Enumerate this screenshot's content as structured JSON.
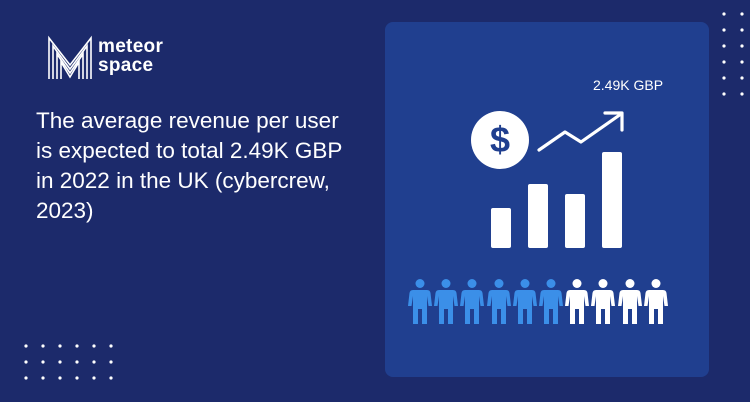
{
  "logo": {
    "line1": "meteor",
    "line2": "space"
  },
  "headline": "The average revenue per user is expected to total 2.49K GBP  in 2022 in the UK (cybercrew, 2023)",
  "infographic": {
    "value_label": "2.49K GBP",
    "dollar_symbol": "$",
    "bar_levels": [
      0.42,
      0.67,
      0.56,
      1.0
    ],
    "people_total": 10,
    "people_highlighted": 6,
    "colors": {
      "background": "#1c2a6b",
      "card": "#203f8f",
      "highlight_person": "#3b8fe8",
      "other_person": "#ffffff"
    },
    "icons": [
      "dollar-icon",
      "trend-arrow-icon",
      "person-icon"
    ]
  }
}
